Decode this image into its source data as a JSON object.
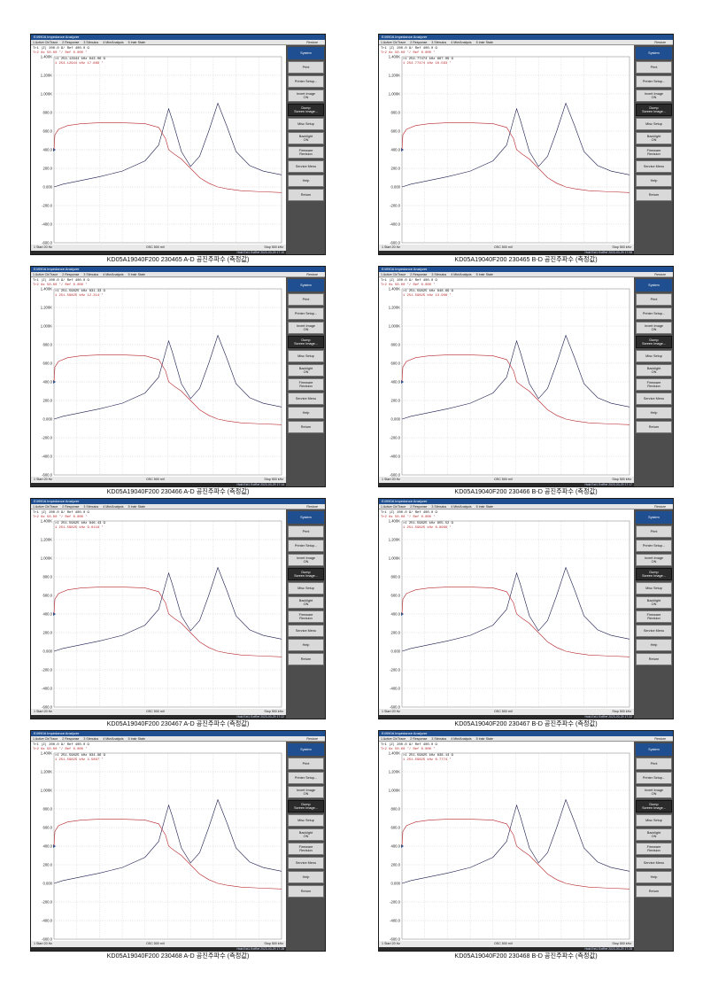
{
  "app": {
    "window_title": "E4990A Impedance Analyzer",
    "menu": [
      "1 Active Ch/Trace",
      "2 Response",
      "3 Stimulus",
      "4 Mkr/Analysis",
      "5 Instr State"
    ],
    "restore_label": "Restore"
  },
  "softkeys": [
    "System",
    "Print",
    "Printer Setup...",
    "Invert Image\nON",
    "Dump\nScreen Image...",
    "Misc Setup",
    "Backlight\nON",
    "Firmware\nRevision",
    "Service Menu",
    "Help",
    "Return"
  ],
  "colors": {
    "trace_impedance": "#1a1a4f",
    "trace_phase": "#b8262b",
    "titlebar": "#1f4f91",
    "softkey_panel": "#4d4d4d"
  },
  "panels": [
    {
      "caption": "KD05A19040F200 230465 A-D 공진주파수 (측정값)",
      "ch_line1": "Tr1 |Z| 200.0 Ω/ Ref 400.0 Ω",
      "ch_line2": "Tr2 θz 50.00 °/ Ref 0.000 °",
      "m1": ">1 254.12944 kHz  843.06 Ω",
      "m2": " 1 254.12944 kHz  17.866 °",
      "start": "1 Start 20 Hz",
      "osc": "OSC 500 mV",
      "stop": "Stop 500 kHz",
      "info": "Hold  Ext1  ExtRef  2023-03-29 17:10"
    },
    {
      "caption": "KD05A19040F200 230465 B-D 공진주파수 (측정값)",
      "ch_line1": "Tr1 |Z| 200.0 Ω/ Ref 400.0 Ω",
      "ch_line2": "Tr2 θz 50.00 °/ Ref 0.000 °",
      "m1": ">1 254.77474 kHz  867.09 Ω",
      "m2": " 1 254.77474 kHz  16.563 °",
      "start": "1 Start 20 Hz",
      "osc": "OSC 500 mV",
      "stop": "Stop 500 kHz",
      "info": "Hold  Ext1  ExtRef  2023-03-29 17:08"
    },
    {
      "caption": "KD05A19040F200 230466 A-D 공진주파수 (측정값)",
      "ch_line1": "Tr1 |Z| 200.0 Ω/ Ref 400.0 Ω",
      "ch_line2": "Tr2 θz 50.00 °/ Ref 0.000 °",
      "m1": ">1 251.59825 kHz  831.33 Ω",
      "m2": " 1 251.59825 kHz  12.314 °",
      "start": "1 Start 20 Hz",
      "osc": "OSC 500 mV",
      "stop": "Stop 500 kHz",
      "info": "Hold  Ext1  ExtRef  2023-03-29 17:14"
    },
    {
      "caption": "KD05A19040F200 230466 B-D 공진주파수 (측정값)",
      "ch_line1": "Tr1 |Z| 200.0 Ω/ Ref 400.0 Ω",
      "ch_line2": "Tr2 θz 50.00 °/ Ref 0.000 °",
      "m1": ">1 251.59825 kHz  848.69 Ω",
      "m2": " 1 251.59825 kHz  13.908 °",
      "start": "1 Start 20 Hz",
      "osc": "OSC 500 mV",
      "stop": "Stop 500 kHz",
      "info": "Hold  Ext1  ExtRef  2023-03-29 17:17"
    },
    {
      "caption": "KD05A19040F200 230467 A-D 공진주파수 (측정값)",
      "ch_line1": "Tr1 |Z| 200.0 Ω/ Ref 400.0 Ω",
      "ch_line2": "Tr2 θz 50.00 °/ Ref 0.000 °",
      "m1": ">1 251.59825 kHz  846.43 Ω",
      "m2": " 1 251.59825 kHz  9.6118 °",
      "start": "1 Start 20 Hz",
      "osc": "OSC 500 mV",
      "stop": "Stop 500 kHz",
      "info": "Hold  Ext1  ExtRef  2023-03-29 17:22"
    },
    {
      "caption": "KD05A19040F200 230467 B-D 공진주파수 (측정값)",
      "ch_line1": "Tr1 |Z| 200.0 Ω/ Ref 400.0 Ω",
      "ch_line2": "Tr2 θz 50.00 °/ Ref 0.000 °",
      "m1": ">1 251.59825 kHz  855.52 Ω",
      "m2": " 1 251.59825 kHz  8.8969 °",
      "start": "1 Start 20 Hz",
      "osc": "OSC 500 mV",
      "stop": "Stop 500 kHz",
      "info": "Hold  Ext1  ExtRef  2023-03-29 17:22"
    },
    {
      "caption": "KD05A19040F200 230468 A-D 공진주파수 (측정값)",
      "ch_line1": "Tr1 |Z| 200.0 Ω/ Ref 400.0 Ω",
      "ch_line2": "Tr2 θz 50.00 °/ Ref 0.000 °",
      "m1": ">1 251.59825 kHz  834.96 Ω",
      "m2": " 1 251.59825 kHz  4.5807 °",
      "start": "1 Start 20 Hz",
      "osc": "OSC 500 mV",
      "stop": "Stop 500 kHz",
      "info": "Hold  Ext1  ExtRef  2023-03-29 17:28"
    },
    {
      "caption": "KD05A19040F200 230468 B-D 공진주파수 (측정값)",
      "ch_line1": "Tr1 |Z| 200.0 Ω/ Ref 400.0 Ω",
      "ch_line2": "Tr2 θz 50.00 °/ Ref 0.000 °",
      "m1": ">1 251.59825 kHz  838.14 Ω",
      "m2": " 1 251.59825 kHz  6.7774 °",
      "start": "1 Start 20 Hz",
      "osc": "OSC 500 mV",
      "stop": "Stop 500 kHz",
      "info": "Hold  Ext1  ExtRef  2023-03-29 17:28"
    }
  ],
  "chart_data": {
    "type": "line",
    "xlim": [
      20,
      500000
    ],
    "x_unit": "Hz",
    "ylim": [
      -600,
      1400
    ],
    "y_ticks": [
      "1.400K",
      "1.200K",
      "1.000K",
      "800.0",
      "600.0",
      "400.0",
      "200.0",
      "0.000",
      "-200.0",
      "-400.0",
      "-600.0"
    ],
    "grid": true,
    "series": [
      {
        "name": "Tr1 |Z|",
        "x": [
          20,
          20000,
          50000,
          100000,
          150000,
          200000,
          230000,
          245000,
          252000,
          260000,
          280000,
          300000,
          320000,
          340000,
          360000,
          380000,
          400000,
          430000,
          460000,
          500000
        ],
        "y": [
          0,
          30,
          60,
          110,
          170,
          280,
          450,
          720,
          840,
          720,
          380,
          220,
          330,
          600,
          900,
          650,
          380,
          230,
          170,
          130
        ]
      },
      {
        "name": "Tr2 θz",
        "x": [
          20,
          2000,
          10000,
          30000,
          60000,
          100000,
          150000,
          200000,
          230000,
          245000,
          252000,
          265000,
          280000,
          300000,
          320000,
          340000,
          360000,
          380000,
          410000,
          450000,
          500000
        ],
        "y": [
          400,
          560,
          620,
          660,
          680,
          690,
          690,
          680,
          640,
          520,
          400,
          350,
          300,
          200,
          100,
          40,
          0,
          -20,
          -40,
          -50,
          -60
        ]
      }
    ]
  }
}
